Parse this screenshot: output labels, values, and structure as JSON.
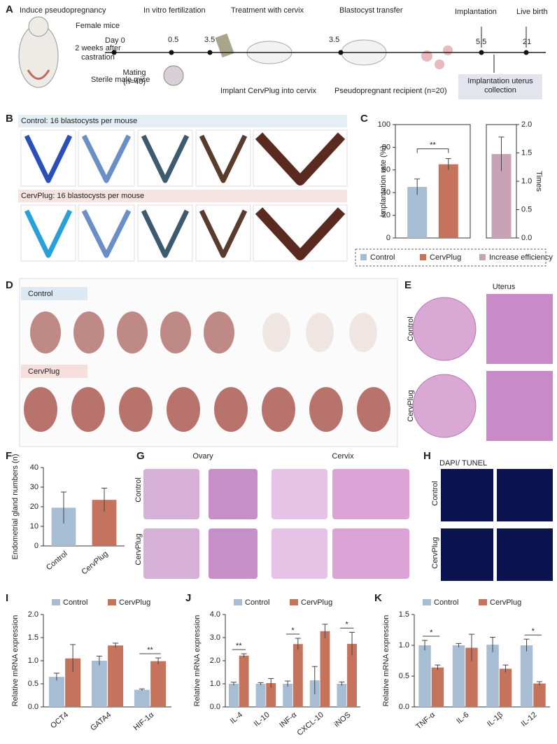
{
  "chart_data": [
    {
      "type": "bar",
      "panel_label": "C",
      "ylabel": "Implantation rate (%)",
      "y2label": "Times",
      "ylim": [
        0,
        100
      ],
      "yticks": [
        0,
        20,
        40,
        60,
        80,
        100
      ],
      "y2lim": [
        0,
        2.0
      ],
      "y2ticks": [
        {
          "value": 0,
          "label": "0.0"
        },
        {
          "value": 0.5,
          "label": "0.5"
        },
        {
          "value": 1.0,
          "label": "1.0"
        },
        {
          "value": 1.5,
          "label": "1.5"
        },
        {
          "value": 2.0,
          "label": "2.0"
        }
      ],
      "series": [
        {
          "name": "Control",
          "color": "#a7bdd4",
          "values": [
            45
          ],
          "errors": [
            7
          ]
        },
        {
          "name": "CervPlug",
          "color": "#c6735d",
          "values": [
            65
          ],
          "errors": [
            5
          ]
        },
        {
          "name": "Increase efficiency",
          "color": "#c9a2b6",
          "values": [
            1.48
          ],
          "errors": [
            0.3
          ],
          "axis": "y2"
        }
      ],
      "annotation": "**"
    },
    {
      "type": "bar",
      "panel_label": "F",
      "ylabel": "Endometrial gland numbers (n)",
      "ylim": [
        0,
        40
      ],
      "yticks": [
        0,
        10,
        20,
        30,
        40
      ],
      "categories": [
        "Control",
        "CervPlug"
      ],
      "values": [
        19.5,
        23.5
      ],
      "errors": [
        8,
        6
      ],
      "colors": [
        "#a7bdd4",
        "#c6735d"
      ]
    },
    {
      "type": "bar",
      "panel_label": "I",
      "ylabel": "Relative mRNA expression",
      "ylim": [
        0,
        2.0
      ],
      "yticks": [
        {
          "value": 0,
          "label": "0.0"
        },
        {
          "value": 0.5,
          "label": "0.5"
        },
        {
          "value": 1.0,
          "label": "1.0"
        },
        {
          "value": 1.5,
          "label": "1.5"
        },
        {
          "value": 2.0,
          "label": "2.0"
        }
      ],
      "categories": [
        "OCT4",
        "GATA4",
        "HIF-1α"
      ],
      "series": [
        {
          "name": "Control",
          "color": "#a7bdd4",
          "values": [
            0.65,
            1.0,
            0.37
          ],
          "errors": [
            0.08,
            0.1,
            0.02
          ]
        },
        {
          "name": "CervPlug",
          "color": "#c6735d",
          "values": [
            1.05,
            1.33,
            0.99
          ],
          "errors": [
            0.3,
            0.05,
            0.07
          ]
        }
      ],
      "significance": [
        null,
        null,
        "**"
      ]
    },
    {
      "type": "bar",
      "panel_label": "J",
      "ylabel": "Relative mRNA expression",
      "ylim": [
        0,
        4.0
      ],
      "yticks": [
        {
          "value": 0,
          "label": "0.0"
        },
        {
          "value": 1.0,
          "label": "1.0"
        },
        {
          "value": 2.0,
          "label": "2.0"
        },
        {
          "value": 3.0,
          "label": "3.0"
        },
        {
          "value": 4.0,
          "label": "4.0"
        }
      ],
      "categories": [
        "IL-4",
        "IL-10",
        "INF-α",
        "CXCL-10",
        "iNOS"
      ],
      "series": [
        {
          "name": "Control",
          "color": "#a7bdd4",
          "values": [
            1.0,
            1.0,
            1.0,
            1.15,
            1.0
          ],
          "errors": [
            0.07,
            0.05,
            0.12,
            0.6,
            0.08
          ]
        },
        {
          "name": "CervPlug",
          "color": "#c6735d",
          "values": [
            2.22,
            1.03,
            2.72,
            3.28,
            2.73
          ],
          "errors": [
            0.08,
            0.2,
            0.25,
            0.3,
            0.5
          ]
        }
      ],
      "significance": [
        "**",
        null,
        "*",
        null,
        "*"
      ]
    },
    {
      "type": "bar",
      "panel_label": "K",
      "ylabel": "Relative mRNA expression",
      "ylim": [
        0,
        1.5
      ],
      "yticks": [
        {
          "value": 0,
          "label": "0.0"
        },
        {
          "value": 0.5,
          "label": "0.5"
        },
        {
          "value": 1.0,
          "label": "1.0"
        },
        {
          "value": 1.5,
          "label": "1.5"
        }
      ],
      "categories": [
        "TNF-α",
        "IL-6",
        "IL-1β",
        "IL-12"
      ],
      "series": [
        {
          "name": "Control",
          "color": "#a7bdd4",
          "values": [
            1.0,
            1.0,
            1.01,
            1.0
          ],
          "errors": [
            0.08,
            0.03,
            0.12,
            0.1
          ]
        },
        {
          "name": "CervPlug",
          "color": "#c6735d",
          "values": [
            0.64,
            0.96,
            0.62,
            0.38
          ],
          "errors": [
            0.04,
            0.22,
            0.06,
            0.03
          ]
        }
      ],
      "significance": [
        "*",
        null,
        null,
        "*"
      ]
    }
  ],
  "panel_a": {
    "label": "A",
    "steps": [
      "Induce pseudopregnancy",
      "In vitro fertilization",
      "Treatment with cervix",
      "Blastocyst transfer",
      "Implantation",
      "Live birth"
    ],
    "female": "Female mice",
    "day0": "Day 0",
    "castration": "2 weeks after castration",
    "male": "Sterile male mice",
    "mating": "Mating (n=40)",
    "times": [
      "0.5",
      "3.5",
      "3.5",
      "5.5",
      "21"
    ],
    "implant": "Implant CervPlug into cervix",
    "recipient": "Pseudopregnant recipient (n=20)",
    "collection": "Implantation uterus collection"
  },
  "panel_b": {
    "label": "B",
    "rows": [
      "Control: 16 blastocysts per mouse",
      "CervPlug: 16 blastocysts per mouse"
    ]
  },
  "panel_d": {
    "label": "D",
    "rows": [
      "Control",
      "CervPlug"
    ]
  },
  "panel_e": {
    "label": "E",
    "title": "Uterus",
    "rows": [
      "Control",
      "CervPlug"
    ]
  },
  "panel_g": {
    "label": "G",
    "columns": [
      "Ovary",
      "Cervix"
    ],
    "rows": [
      "Control",
      "CervPlug"
    ]
  },
  "panel_h": {
    "label": "H",
    "stains": [
      "DAPI",
      "/",
      "TUNEL"
    ],
    "rows": [
      "Control",
      "CervPlug"
    ]
  }
}
